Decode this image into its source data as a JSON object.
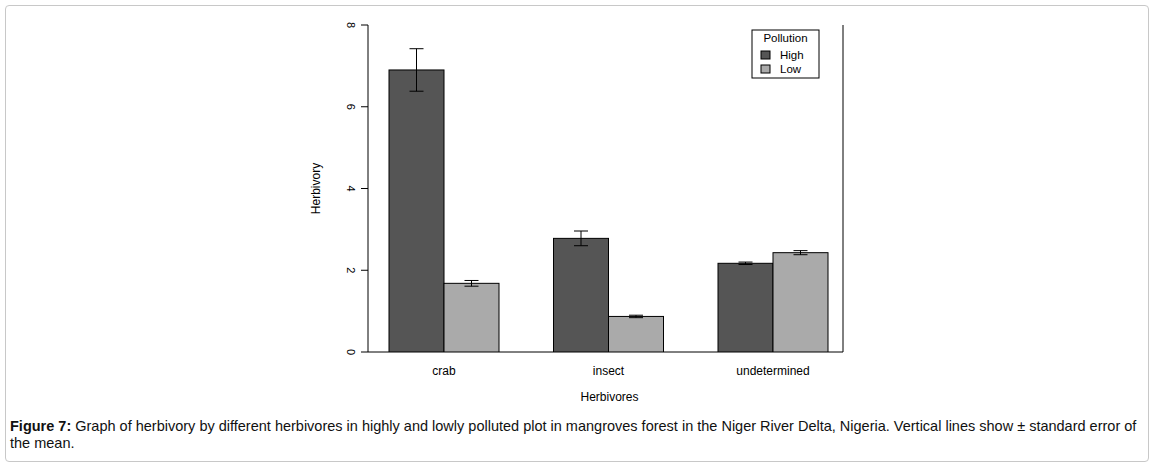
{
  "chart_data": {
    "type": "bar",
    "caption": {
      "label": "Figure 7:",
      "text": "Graph of herbivory by different herbivores in highly and lowly polluted plot in mangroves forest in the Niger River Delta, Nigeria. Vertical lines show ± standard error of the mean."
    },
    "x_label": "Herbivores",
    "y_label": "Herbivory",
    "categories": [
      "crab",
      "insect",
      "undetermined"
    ],
    "series": [
      {
        "name": "High",
        "color": "#555555",
        "values": [
          6.9,
          2.78,
          2.17
        ],
        "errors": [
          0.52,
          0.18,
          0.03
        ]
      },
      {
        "name": "Low",
        "color": "#aaaaaa",
        "values": [
          1.68,
          0.87,
          2.43
        ],
        "errors": [
          0.07,
          0.03,
          0.05
        ]
      }
    ],
    "ylim": [
      0,
      8
    ],
    "yticks": [
      0,
      2,
      4,
      6,
      8
    ],
    "grid": false,
    "legend": "topright",
    "legend_title": "Pollution"
  }
}
